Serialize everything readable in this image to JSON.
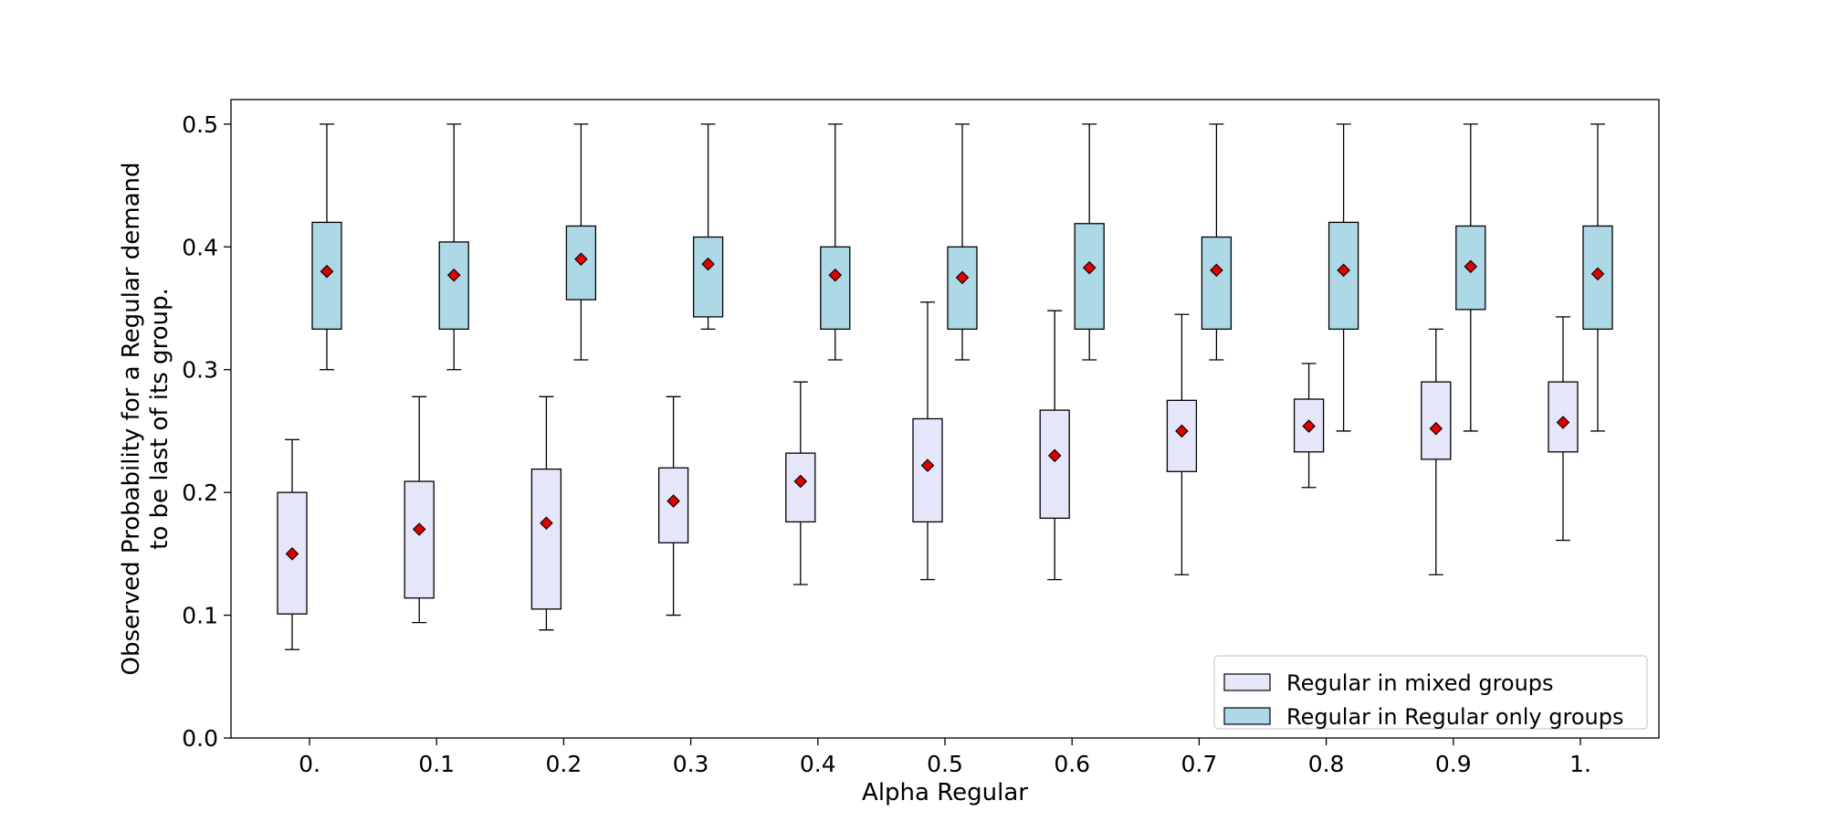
{
  "chart_data": {
    "type": "box",
    "title": "",
    "xlabel": "Alpha Regular",
    "ylabel_lines": [
      "Observed Probability for a Regular demand",
      "to be last of its group."
    ],
    "ylim": [
      0.0,
      0.52
    ],
    "yticks": [
      0.0,
      0.1,
      0.2,
      0.3,
      0.4,
      0.5
    ],
    "ytick_labels": [
      "0.0",
      "0.1",
      "0.2",
      "0.3",
      "0.4",
      "0.5"
    ],
    "categories": [
      "0.",
      "0.1",
      "0.2",
      "0.3",
      "0.4",
      "0.5",
      "0.6",
      "0.7",
      "0.8",
      "0.9",
      "1."
    ],
    "grid": false,
    "legend_position": "bottom-right",
    "series": [
      {
        "name": "Regular in mixed groups",
        "color": "#e6e6fa",
        "boxes": [
          {
            "whislo": 0.072,
            "q1": 0.101,
            "q3": 0.2,
            "whishi": 0.243,
            "mean": 0.15
          },
          {
            "whislo": 0.094,
            "q1": 0.114,
            "q3": 0.209,
            "whishi": 0.278,
            "mean": 0.17
          },
          {
            "whislo": 0.088,
            "q1": 0.105,
            "q3": 0.219,
            "whishi": 0.278,
            "mean": 0.175
          },
          {
            "whislo": 0.1,
            "q1": 0.159,
            "q3": 0.22,
            "whishi": 0.278,
            "mean": 0.193
          },
          {
            "whislo": 0.125,
            "q1": 0.176,
            "q3": 0.232,
            "whishi": 0.29,
            "mean": 0.209
          },
          {
            "whislo": 0.129,
            "q1": 0.176,
            "q3": 0.26,
            "whishi": 0.355,
            "mean": 0.222
          },
          {
            "whislo": 0.129,
            "q1": 0.179,
            "q3": 0.267,
            "whishi": 0.348,
            "mean": 0.23
          },
          {
            "whislo": 0.133,
            "q1": 0.217,
            "q3": 0.275,
            "whishi": 0.345,
            "mean": 0.25
          },
          {
            "whislo": 0.204,
            "q1": 0.233,
            "q3": 0.276,
            "whishi": 0.305,
            "mean": 0.254
          },
          {
            "whislo": 0.133,
            "q1": 0.227,
            "q3": 0.29,
            "whishi": 0.333,
            "mean": 0.252
          },
          {
            "whislo": 0.161,
            "q1": 0.233,
            "q3": 0.29,
            "whishi": 0.343,
            "mean": 0.257
          }
        ]
      },
      {
        "name": "Regular in Regular only groups",
        "color": "#add8e6",
        "boxes": [
          {
            "whislo": 0.3,
            "q1": 0.333,
            "q3": 0.42,
            "whishi": 0.5,
            "mean": 0.38
          },
          {
            "whislo": 0.3,
            "q1": 0.333,
            "q3": 0.404,
            "whishi": 0.5,
            "mean": 0.377
          },
          {
            "whislo": 0.308,
            "q1": 0.357,
            "q3": 0.417,
            "whishi": 0.5,
            "mean": 0.39
          },
          {
            "whislo": 0.333,
            "q1": 0.343,
            "q3": 0.408,
            "whishi": 0.5,
            "mean": 0.386
          },
          {
            "whislo": 0.308,
            "q1": 0.333,
            "q3": 0.4,
            "whishi": 0.5,
            "mean": 0.377
          },
          {
            "whislo": 0.308,
            "q1": 0.333,
            "q3": 0.4,
            "whishi": 0.5,
            "mean": 0.375
          },
          {
            "whislo": 0.308,
            "q1": 0.333,
            "q3": 0.419,
            "whishi": 0.5,
            "mean": 0.383
          },
          {
            "whislo": 0.308,
            "q1": 0.333,
            "q3": 0.408,
            "whishi": 0.5,
            "mean": 0.381
          },
          {
            "whislo": 0.25,
            "q1": 0.333,
            "q3": 0.42,
            "whishi": 0.5,
            "mean": 0.381
          },
          {
            "whislo": 0.25,
            "q1": 0.349,
            "q3": 0.417,
            "whishi": 0.5,
            "mean": 0.384
          },
          {
            "whislo": 0.25,
            "q1": 0.333,
            "q3": 0.417,
            "whishi": 0.5,
            "mean": 0.378
          }
        ]
      }
    ],
    "mean_marker_color": "#e00000"
  }
}
